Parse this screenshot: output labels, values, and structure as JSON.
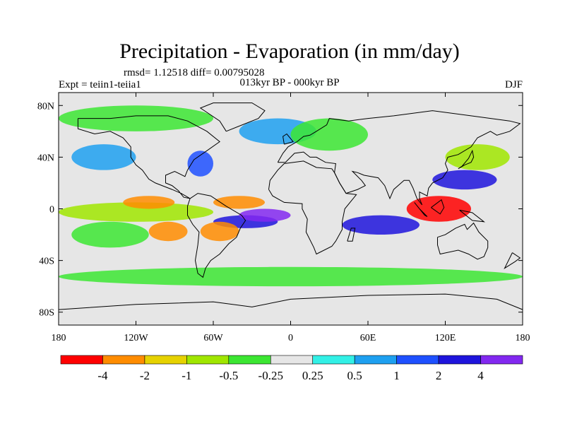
{
  "title": "Precipitation - Evaporation (in mm/day)",
  "stats": "rmsd= 1.12518 diff= 0.00795028",
  "experiment": "Expt = teiin1-teiia1",
  "period": "013kyr BP - 000kyr BP",
  "season": "DJF",
  "colors": {
    "background_field": "#e6e6e6",
    "frame": "#000000",
    "coastline": "#000000"
  },
  "chart_data": {
    "type": "heatmap",
    "title": "Precipitation - Evaporation (in mm/day)",
    "xlabel": "",
    "ylabel": "",
    "x_ticks": [
      "180",
      "120W",
      "60W",
      "0",
      "60E",
      "120E",
      "180"
    ],
    "y_ticks": [
      "80N",
      "40N",
      "0",
      "40S",
      "80S"
    ],
    "xlim": [
      -180,
      180
    ],
    "ylim": [
      -90,
      90
    ],
    "colorbar": {
      "labels": [
        "-4",
        "-2",
        "-1",
        "-0.5",
        "-0.25",
        "0.25",
        "0.5",
        "1",
        "2",
        "4"
      ],
      "colors": [
        "#ff0000",
        "#ff8c00",
        "#e6d200",
        "#a0e600",
        "#3ce632",
        "#e6e6e6",
        "#32f0e6",
        "#1ea0f0",
        "#1e50ff",
        "#1e14dc",
        "#8228f0"
      ]
    },
    "regions": [
      {
        "lon": [
          -180,
          -60
        ],
        "lat": [
          -10,
          5
        ],
        "level": 3
      },
      {
        "lon": [
          -170,
          -110
        ],
        "lat": [
          -30,
          -10
        ],
        "level": 4
      },
      {
        "lon": [
          -130,
          -90
        ],
        "lat": [
          0,
          10
        ],
        "level": 1
      },
      {
        "lon": [
          -110,
          -80
        ],
        "lat": [
          -25,
          -10
        ],
        "level": 1
      },
      {
        "lon": [
          -60,
          -10
        ],
        "lat": [
          -15,
          -5
        ],
        "level": 9
      },
      {
        "lon": [
          -40,
          0
        ],
        "lat": [
          -10,
          0
        ],
        "level": 10
      },
      {
        "lon": [
          -60,
          -20
        ],
        "lat": [
          0,
          10
        ],
        "level": 1
      },
      {
        "lon": [
          -70,
          -40
        ],
        "lat": [
          -25,
          -10
        ],
        "level": 1
      },
      {
        "lon": [
          -80,
          -60
        ],
        "lat": [
          25,
          45
        ],
        "level": 8
      },
      {
        "lon": [
          40,
          100
        ],
        "lat": [
          -20,
          -5
        ],
        "level": 9
      },
      {
        "lon": [
          90,
          140
        ],
        "lat": [
          -10,
          10
        ],
        "level": 0
      },
      {
        "lon": [
          110,
          160
        ],
        "lat": [
          15,
          30
        ],
        "level": 9
      },
      {
        "lon": [
          120,
          170
        ],
        "lat": [
          30,
          50
        ],
        "level": 3
      },
      {
        "lon": [
          -170,
          -120
        ],
        "lat": [
          30,
          50
        ],
        "level": 7
      },
      {
        "lon": [
          -40,
          20
        ],
        "lat": [
          50,
          70
        ],
        "level": 7
      },
      {
        "lon": [
          0,
          60
        ],
        "lat": [
          45,
          70
        ],
        "level": 4
      },
      {
        "lon": [
          -180,
          180
        ],
        "lat": [
          -60,
          -45
        ],
        "level": 4
      },
      {
        "lon": [
          -180,
          -60
        ],
        "lat": [
          60,
          80
        ],
        "level": 4
      }
    ]
  }
}
